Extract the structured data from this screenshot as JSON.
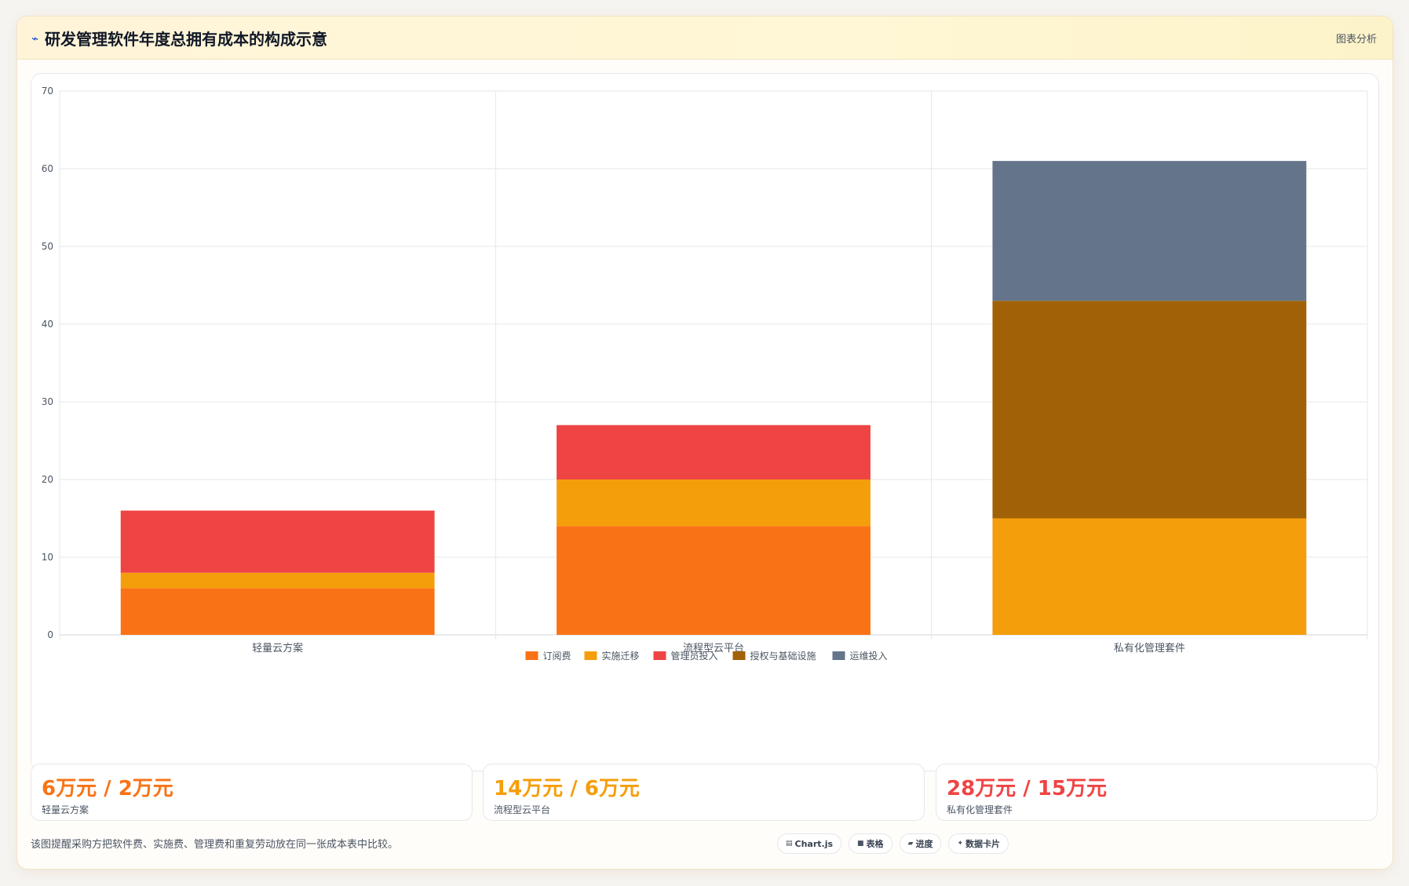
{
  "header": {
    "title": "研发管理软件年度总拥有成本的构成示意",
    "analysis_link": "图表分析"
  },
  "chart_data": {
    "type": "bar",
    "stacked": true,
    "categories": [
      "轻量云方案",
      "流程型云平台",
      "私有化管理套件"
    ],
    "series": [
      {
        "name": "订阅费",
        "color": "#f97316",
        "values": [
          6,
          14,
          0
        ]
      },
      {
        "name": "实施迁移",
        "color": "#f59e0b",
        "values": [
          2,
          6,
          15
        ]
      },
      {
        "name": "管理员投入",
        "color": "#ef4444",
        "values": [
          8,
          7,
          0
        ]
      },
      {
        "name": "授权与基础设施",
        "color": "#a16207",
        "values": [
          0,
          0,
          28
        ]
      },
      {
        "name": "运维投入",
        "color": "#64748b",
        "values": [
          0,
          0,
          18
        ]
      }
    ],
    "ylim": [
      0,
      70
    ],
    "yticks": [
      "0",
      "10",
      "20",
      "30",
      "40",
      "50",
      "60",
      "70"
    ],
    "grid": true,
    "legend_position": "bottom"
  },
  "stats": [
    {
      "value": "6万元 / 2万元",
      "label": "轻量云方案",
      "color": "#f97316"
    },
    {
      "value": "14万元 / 6万元",
      "label": "流程型云平台",
      "color": "#f59e0b"
    },
    {
      "value": "28万元 / 15万元",
      "label": "私有化管理套件",
      "color": "#ef4444"
    }
  ],
  "footnote": "该图提醒采购方把软件费、实施费、管理费和重复劳动放在同一张成本表中比较。",
  "badges": [
    {
      "icon": "chart-icon",
      "glyph": "▤",
      "label": "Chart.js"
    },
    {
      "icon": "table-icon",
      "glyph": "■",
      "label": "表格"
    },
    {
      "icon": "progress-icon",
      "glyph": "▰",
      "label": "进度"
    },
    {
      "icon": "data-card-icon",
      "glyph": "✦",
      "label": "数据卡片"
    }
  ]
}
